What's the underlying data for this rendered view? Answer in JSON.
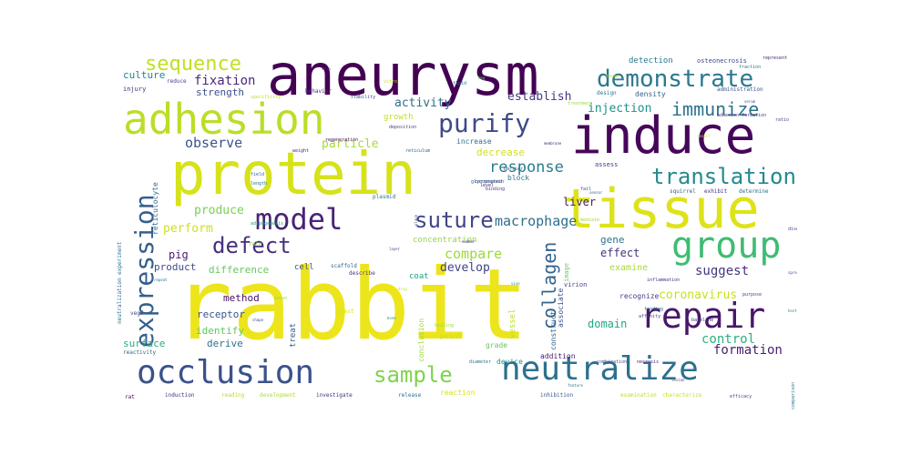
{
  "words": [
    {
      "text": "rabbit",
      "weight": 100,
      "color": "#ede51b"
    },
    {
      "text": "aneurysm",
      "weight": 58,
      "color": "#440154"
    },
    {
      "text": "protein",
      "weight": 56,
      "color": "#d6e21a"
    },
    {
      "text": "tissue",
      "weight": 52,
      "color": "#dde318"
    },
    {
      "text": "induce",
      "weight": 48,
      "color": "#46075a"
    },
    {
      "text": "adhesion",
      "weight": 42,
      "color": "#bade28"
    },
    {
      "text": "group",
      "weight": 34,
      "color": "#3fbc73"
    },
    {
      "text": "occlusion",
      "weight": 30,
      "color": "#3b528b"
    },
    {
      "text": "repair",
      "weight": 30,
      "color": "#481769"
    },
    {
      "text": "neutralize",
      "weight": 30,
      "color": "#2d708e"
    },
    {
      "text": "model",
      "weight": 28,
      "color": "#482475"
    },
    {
      "text": "expression",
      "weight": 24,
      "color": "#355f8d"
    },
    {
      "text": "demonstrate",
      "weight": 22,
      "color": "#2a788e"
    },
    {
      "text": "purify",
      "weight": 22,
      "color": "#3e4a89"
    },
    {
      "text": "suture",
      "weight": 20,
      "color": "#404688"
    },
    {
      "text": "defect",
      "weight": 20,
      "color": "#472f7d"
    },
    {
      "text": "translation",
      "weight": 20,
      "color": "#238a8d"
    },
    {
      "text": "sample",
      "weight": 20,
      "color": "#7fd34e"
    },
    {
      "text": "collagen",
      "weight": 18,
      "color": "#33638d"
    },
    {
      "text": "immunize",
      "weight": 17,
      "color": "#2c728e"
    },
    {
      "text": "sequence",
      "weight": 16,
      "color": "#c2df23"
    },
    {
      "text": "response",
      "weight": 14,
      "color": "#287c8e"
    },
    {
      "text": "macrophage",
      "weight": 13,
      "color": "#2e6e8e"
    },
    {
      "text": "observe",
      "weight": 13,
      "color": "#3a548c"
    },
    {
      "text": "formation",
      "weight": 12,
      "color": "#481f70"
    },
    {
      "text": "suggest",
      "weight": 12,
      "color": "#46337f"
    },
    {
      "text": "compare",
      "weight": 12,
      "color": "#9bd93c"
    },
    {
      "text": "control",
      "weight": 12,
      "color": "#2ab07f"
    },
    {
      "text": "fixation",
      "weight": 12,
      "color": "#482878"
    },
    {
      "text": "activity",
      "weight": 11,
      "color": "#2f6c8e"
    },
    {
      "text": "particle",
      "weight": 11,
      "color": "#a5db36"
    },
    {
      "text": "produce",
      "weight": 11,
      "color": "#77d153"
    },
    {
      "text": "develop",
      "weight": 11,
      "color": "#404387"
    },
    {
      "text": "establish",
      "weight": 11,
      "color": "#453781"
    },
    {
      "text": "injection",
      "weight": 11,
      "color": "#21918c"
    },
    {
      "text": "coronavirus",
      "weight": 11,
      "color": "#c8e020"
    },
    {
      "text": "perform",
      "weight": 11,
      "color": "#d0e11c"
    },
    {
      "text": "culture",
      "weight": 10,
      "color": "#25838e"
    },
    {
      "text": "strength",
      "weight": 10,
      "color": "#3d4e8a"
    },
    {
      "text": "pig",
      "weight": 10,
      "color": "#481b6d"
    },
    {
      "text": "liver",
      "weight": 10,
      "color": "#482071"
    },
    {
      "text": "effect",
      "weight": 10,
      "color": "#46327e"
    },
    {
      "text": "domain",
      "weight": 10,
      "color": "#21a685"
    },
    {
      "text": "gene",
      "weight": 10,
      "color": "#2c738e"
    },
    {
      "text": "decrease",
      "weight": 10,
      "color": "#d2e21b"
    },
    {
      "text": "product",
      "weight": 10,
      "color": "#3e4c8a"
    },
    {
      "text": "difference",
      "weight": 10,
      "color": "#63cb5f"
    },
    {
      "text": "method",
      "weight": 10,
      "color": "#470e61"
    },
    {
      "text": "receptor",
      "weight": 10,
      "color": "#3b528b"
    },
    {
      "text": "identify",
      "weight": 10,
      "color": "#60ca60"
    },
    {
      "text": "derive",
      "weight": 10,
      "color": "#2c728e"
    },
    {
      "text": "surface",
      "weight": 10,
      "color": "#27ad81"
    },
    {
      "text": "examine",
      "weight": 9,
      "color": "#a8db34"
    },
    {
      "text": "concentration",
      "weight": 8,
      "color": "#8ed645"
    },
    {
      "text": "growth",
      "weight": 8,
      "color": "#c0df25"
    },
    {
      "text": "detection",
      "weight": 8,
      "color": "#2a788e"
    },
    {
      "text": "density",
      "weight": 7,
      "color": "#34618d"
    },
    {
      "text": "increase",
      "weight": 7,
      "color": "#2e6e8e"
    },
    {
      "text": "treat",
      "weight": 8,
      "color": "#34608d"
    },
    {
      "text": "cell",
      "weight": 8,
      "color": "#3b528b"
    },
    {
      "text": "coat",
      "weight": 7,
      "color": "#1fa088"
    },
    {
      "text": "vessel",
      "weight": 7,
      "color": "#bddf26"
    },
    {
      "text": "grade",
      "weight": 7,
      "color": "#5ec962"
    },
    {
      "text": "point",
      "weight": 7,
      "color": "#c2df23"
    },
    {
      "text": "device",
      "weight": 7,
      "color": "#21918c"
    },
    {
      "text": "addition",
      "weight": 7,
      "color": "#482071"
    },
    {
      "text": "reaction",
      "weight": 7,
      "color": "#d8e219"
    },
    {
      "text": "associate",
      "weight": 7,
      "color": "#3b528b"
    },
    {
      "text": "construct",
      "weight": 7,
      "color": "#33638d"
    },
    {
      "text": "structure",
      "weight": 7,
      "color": "#30698e"
    },
    {
      "text": "recognize",
      "weight": 7,
      "color": "#433e85"
    },
    {
      "text": "conclusion",
      "weight": 7,
      "color": "#a0da39"
    },
    {
      "text": "reticulocyte",
      "weight": 7,
      "color": "#31688e"
    },
    {
      "text": "image",
      "weight": 6,
      "color": "#6ccd5a"
    },
    {
      "text": "osteonecrosis",
      "weight": 6,
      "color": "#3e4a89"
    },
    {
      "text": "administration",
      "weight": 6,
      "color": "#3b528b"
    },
    {
      "text": "design",
      "weight": 6,
      "color": "#2c728e"
    },
    {
      "text": "injury",
      "weight": 6,
      "color": "#46327e"
    },
    {
      "text": "behavior",
      "weight": 6,
      "color": "#472c7a"
    },
    {
      "text": "reduce",
      "weight": 5,
      "color": "#404688"
    },
    {
      "text": "vegf",
      "weight": 5,
      "color": "#3e4989"
    },
    {
      "text": "rat",
      "weight": 5,
      "color": "#46085c"
    },
    {
      "text": "reactivity",
      "weight": 5,
      "color": "#33638d"
    },
    {
      "text": "neutralization experiment",
      "weight": 5,
      "color": "#2c728e"
    },
    {
      "text": "induction",
      "weight": 5,
      "color": "#472a7a"
    },
    {
      "text": "reading",
      "weight": 5,
      "color": "#b5de2b"
    },
    {
      "text": "development",
      "weight": 5,
      "color": "#a8db34"
    },
    {
      "text": "investigate",
      "weight": 5,
      "color": "#472f7d"
    },
    {
      "text": "release",
      "weight": 5,
      "color": "#2c738e"
    },
    {
      "text": "inhibition",
      "weight": 5,
      "color": "#3a548c"
    },
    {
      "text": "examination",
      "weight": 5,
      "color": "#b8de29"
    },
    {
      "text": "characterize",
      "weight": 5,
      "color": "#c5e021"
    },
    {
      "text": "efficacy",
      "weight": 5,
      "color": "#3e4a89"
    },
    {
      "text": "describe",
      "weight": 5,
      "color": "#46337f"
    },
    {
      "text": "scaffold",
      "weight": 5,
      "color": "#33638d"
    },
    {
      "text": "role",
      "weight": 5,
      "color": "#8bd646"
    },
    {
      "text": "inject",
      "weight": 5,
      "color": "#d5e21a"
    },
    {
      "text": "virion",
      "weight": 5,
      "color": "#414487"
    },
    {
      "text": "combination",
      "weight": 4,
      "color": "#3e4a89"
    },
    {
      "text": "necrosis",
      "weight": 4,
      "color": "#482576"
    },
    {
      "text": "diameter",
      "weight": 4,
      "color": "#2e6f8e"
    },
    {
      "text": "healing",
      "weight": 4,
      "color": "#a2da37"
    },
    {
      "text": "stability",
      "weight": 4,
      "color": "#3c4f8a"
    },
    {
      "text": "weight",
      "weight": 4,
      "color": "#472c7a"
    },
    {
      "text": "specificity",
      "weight": 4,
      "color": "#c0df25"
    },
    {
      "text": "treatment",
      "weight": 4,
      "color": "#9bd93c"
    },
    {
      "text": "fluid",
      "weight": 4,
      "color": "#2a788e"
    },
    {
      "text": "fraction",
      "weight": 4,
      "color": "#2c728e"
    },
    {
      "text": "represent",
      "weight": 4,
      "color": "#482374"
    },
    {
      "text": "ratio",
      "weight": 4,
      "color": "#3e4a89"
    },
    {
      "text": "adhesion formation",
      "weight": 4,
      "color": "#433d84"
    },
    {
      "text": "deposition",
      "weight": 4,
      "color": "#404588"
    },
    {
      "text": "reticulum",
      "weight": 4,
      "color": "#355e8d"
    },
    {
      "text": "block",
      "weight": 5,
      "color": "#2a788e"
    },
    {
      "text": "correspond",
      "weight": 4,
      "color": "#3e4989"
    },
    {
      "text": "assess",
      "weight": 5,
      "color": "#443983"
    },
    {
      "text": "squirrel",
      "weight": 4,
      "color": "#34618d"
    },
    {
      "text": "exhibit",
      "weight": 4,
      "color": "#463480"
    },
    {
      "text": "determine",
      "weight": 4,
      "color": "#2e6d8e"
    },
    {
      "text": "field",
      "weight": 4,
      "color": "#33628d"
    },
    {
      "text": "length",
      "weight": 4,
      "color": "#2a778e"
    },
    {
      "text": "barrier",
      "weight": 4,
      "color": "#3b528b"
    },
    {
      "text": "glycoprotein",
      "weight": 4,
      "color": "#33638d"
    },
    {
      "text": "binding",
      "weight": 4,
      "color": "#433e85"
    },
    {
      "text": "plasmid",
      "weight": 4,
      "color": "#2c728e"
    },
    {
      "text": "adipogenesis",
      "weight": 4,
      "color": "#21a585"
    },
    {
      "text": "regeneration",
      "weight": 4,
      "color": "#46075a"
    },
    {
      "text": "mediate",
      "weight": 4,
      "color": "#a0da39"
    },
    {
      "text": "disease",
      "weight": 4,
      "color": "#3e4a89"
    },
    {
      "text": "inflammation",
      "weight": 4,
      "color": "#46327e"
    },
    {
      "text": "purpose",
      "weight": 4,
      "color": "#3e4989"
    },
    {
      "text": "finding",
      "weight": 4,
      "color": "#2c728e"
    },
    {
      "text": "affinity",
      "weight": 4,
      "color": "#433e85"
    },
    {
      "text": "baseline",
      "weight": 4,
      "color": "#46327e"
    },
    {
      "text": "comparison",
      "weight": 4,
      "color": "#2a788e"
    },
    {
      "text": "vitro",
      "weight": 4,
      "color": "#c5e021"
    },
    {
      "text": "hmg",
      "weight": 3,
      "color": "#5ec962"
    },
    {
      "text": "level",
      "weight": 4,
      "color": "#482475"
    },
    {
      "text": "fail",
      "weight": 4,
      "color": "#3b528b"
    },
    {
      "text": "site",
      "weight": 3,
      "color": "#c2df23"
    },
    {
      "text": "number",
      "weight": 3,
      "color": "#482878"
    },
    {
      "text": "place",
      "weight": 3,
      "color": "#3e4a89"
    },
    {
      "text": "layer",
      "weight": 3,
      "color": "#433e85"
    },
    {
      "text": "amount",
      "weight": 3,
      "color": "#8bd646"
    },
    {
      "text": "tendon",
      "weight": 3,
      "color": "#c5e021"
    },
    {
      "text": "repeat",
      "weight": 3,
      "color": "#2c728e"
    },
    {
      "text": "membrane",
      "weight": 3,
      "color": "#472f7d"
    },
    {
      "text": "sensor",
      "weight": 3,
      "color": "#33638d"
    },
    {
      "text": "serum",
      "weight": 3,
      "color": "#3e4989"
    },
    {
      "text": "spread",
      "weight": 3,
      "color": "#404688"
    },
    {
      "text": "drug",
      "weight": 3,
      "color": "#c0df25"
    },
    {
      "text": "vivo",
      "weight": 3,
      "color": "#2a788e"
    },
    {
      "text": "lesion",
      "weight": 3,
      "color": "#46337f"
    },
    {
      "text": "feature",
      "weight": 3,
      "color": "#2e6f8e"
    },
    {
      "text": "bone",
      "weight": 3,
      "color": "#21918c"
    },
    {
      "text": "shape",
      "weight": 3,
      "color": "#3b528b"
    },
    {
      "text": "host",
      "weight": 3,
      "color": "#2a788e"
    },
    {
      "text": "skin",
      "weight": 3,
      "color": "#482878"
    },
    {
      "text": "result",
      "weight": 3,
      "color": "#d0e11c"
    }
  ]
}
